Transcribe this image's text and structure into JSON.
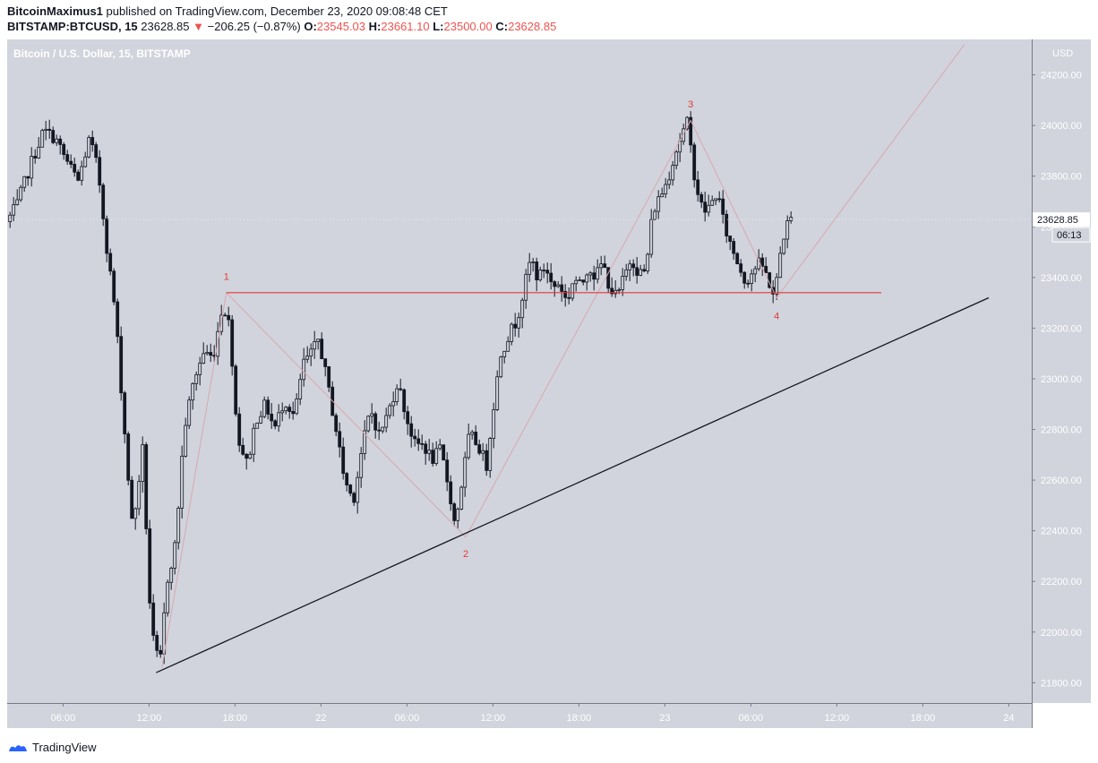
{
  "header": {
    "author": "BitcoinMaximus1",
    "published_text": "published on TradingView.com, December 23, 2020 09:08:48 CET",
    "symbol": "BITSTAMP:BTCUSD, 15",
    "last": "23628.85",
    "change": "−206.25 (−0.87%)",
    "o_label": "O:",
    "o_value": "23545.03",
    "h_label": "H:",
    "h_value": "23661.10",
    "l_label": "L:",
    "l_value": "23500.00",
    "c_label": "C:",
    "c_value": "23628.85"
  },
  "footer": {
    "brand": "TradingView"
  },
  "colors": {
    "background": "#d1d4dc",
    "candle": "#131722",
    "resistance": "#e53935",
    "wave": "#d7a8b2",
    "trend": "#131722",
    "label": "#e53935",
    "price_tag": "#ffffff"
  },
  "chart_data": {
    "type": "candlestick",
    "title": "Bitcoin / U.S. Dollar, 15, BITSTAMP",
    "currency": "USD",
    "ylim": [
      21720,
      24340
    ],
    "y_ticks": [
      21800,
      22000,
      22200,
      22400,
      22600,
      22800,
      23000,
      23200,
      23400,
      23600,
      23800,
      24000,
      24200
    ],
    "x_ticks": [
      {
        "t": 0.5,
        "label": "06:00"
      },
      {
        "t": 6.5,
        "label": "12:00"
      },
      {
        "t": 12.5,
        "label": "18:00"
      },
      {
        "t": 18.5,
        "label": "22"
      },
      {
        "t": 24.5,
        "label": "06:00"
      },
      {
        "t": 30.5,
        "label": "12:00"
      },
      {
        "t": 36.5,
        "label": "18:00"
      },
      {
        "t": 42.5,
        "label": "23"
      },
      {
        "t": 48.5,
        "label": "06:00"
      },
      {
        "t": 54.5,
        "label": "12:00"
      },
      {
        "t": 60.5,
        "label": "18:00"
      },
      {
        "t": 66.5,
        "label": "24"
      }
    ],
    "xlim": [
      -3.4,
      68.1
    ],
    "last_price": {
      "value": 23628.85,
      "label": "23628.85",
      "countdown": "06:13"
    },
    "price_path": [
      [
        -3.2,
        23620
      ],
      [
        -2.5,
        23680
      ],
      [
        -1.5,
        23850
      ],
      [
        -0.6,
        23980
      ],
      [
        0.2,
        23950
      ],
      [
        1.0,
        23860
      ],
      [
        1.8,
        23780
      ],
      [
        2.6,
        23950
      ],
      [
        3.2,
        23820
      ],
      [
        3.8,
        23520
      ],
      [
        4.4,
        23260
      ],
      [
        5.0,
        22820
      ],
      [
        5.6,
        22400
      ],
      [
        6.3,
        22720
      ],
      [
        6.9,
        22000
      ],
      [
        7.5,
        21860
      ],
      [
        8.0,
        22200
      ],
      [
        8.6,
        22350
      ],
      [
        9.2,
        22800
      ],
      [
        9.9,
        23000
      ],
      [
        10.6,
        23110
      ],
      [
        11.2,
        23080
      ],
      [
        11.9,
        23300
      ],
      [
        12.4,
        23200
      ],
      [
        12.9,
        22780
      ],
      [
        13.6,
        22660
      ],
      [
        14.2,
        22840
      ],
      [
        14.9,
        22900
      ],
      [
        15.5,
        22800
      ],
      [
        16.2,
        22920
      ],
      [
        16.9,
        22850
      ],
      [
        17.5,
        23060
      ],
      [
        18.1,
        23100
      ],
      [
        18.6,
        23160
      ],
      [
        19.2,
        22980
      ],
      [
        19.8,
        22800
      ],
      [
        20.4,
        22600
      ],
      [
        21.0,
        22520
      ],
      [
        21.6,
        22720
      ],
      [
        22.2,
        22880
      ],
      [
        22.8,
        22780
      ],
      [
        23.4,
        22860
      ],
      [
        24.1,
        22990
      ],
      [
        24.7,
        22850
      ],
      [
        25.3,
        22740
      ],
      [
        25.9,
        22740
      ],
      [
        26.5,
        22680
      ],
      [
        27.1,
        22720
      ],
      [
        27.7,
        22560
      ],
      [
        28.1,
        22420
      ],
      [
        28.6,
        22600
      ],
      [
        29.1,
        22780
      ],
      [
        29.7,
        22740
      ],
      [
        30.3,
        22660
      ],
      [
        30.8,
        22900
      ],
      [
        31.3,
        23100
      ],
      [
        31.9,
        23180
      ],
      [
        32.4,
        23230
      ],
      [
        32.9,
        23350
      ],
      [
        33.4,
        23480
      ],
      [
        33.9,
        23390
      ],
      [
        34.4,
        23450
      ],
      [
        34.9,
        23360
      ],
      [
        35.4,
        23380
      ],
      [
        35.9,
        23300
      ],
      [
        36.4,
        23400
      ],
      [
        36.9,
        23360
      ],
      [
        37.4,
        23450
      ],
      [
        37.9,
        23400
      ],
      [
        38.4,
        23460
      ],
      [
        38.9,
        23360
      ],
      [
        39.4,
        23320
      ],
      [
        39.9,
        23400
      ],
      [
        40.4,
        23480
      ],
      [
        40.9,
        23420
      ],
      [
        41.4,
        23420
      ],
      [
        41.9,
        23660
      ],
      [
        42.4,
        23720
      ],
      [
        42.9,
        23780
      ],
      [
        43.4,
        23880
      ],
      [
        43.9,
        23960
      ],
      [
        44.3,
        24010
      ],
      [
        44.9,
        23770
      ],
      [
        45.4,
        23660
      ],
      [
        45.9,
        23680
      ],
      [
        46.4,
        23740
      ],
      [
        46.9,
        23600
      ],
      [
        47.4,
        23520
      ],
      [
        47.9,
        23450
      ],
      [
        48.4,
        23380
      ],
      [
        48.9,
        23430
      ],
      [
        49.4,
        23460
      ],
      [
        49.9,
        23400
      ],
      [
        50.4,
        23320
      ],
      [
        50.9,
        23540
      ],
      [
        51.4,
        23628.85
      ]
    ],
    "annotations": {
      "resistance": {
        "t1": 11.9,
        "t2": 57.6,
        "y": 23340
      },
      "trendline": {
        "t1": 7.0,
        "y1": 21840,
        "t2": 65.1,
        "y2": 23320
      },
      "wave_points": [
        {
          "t": 7.4,
          "y": 21860
        },
        {
          "t": 11.9,
          "y": 23340
        },
        {
          "t": 28.6,
          "y": 22375
        },
        {
          "t": 44.3,
          "y": 24020
        },
        {
          "t": 50.3,
          "y": 23320
        },
        {
          "t": 63.4,
          "y": 24320
        }
      ],
      "labels": [
        {
          "text": "1",
          "t": 11.9,
          "y": 23370,
          "pos": "above"
        },
        {
          "text": "2",
          "t": 28.6,
          "y": 22345,
          "pos": "below"
        },
        {
          "text": "3",
          "t": 44.3,
          "y": 24050,
          "pos": "above"
        },
        {
          "text": "4",
          "t": 50.3,
          "y": 23285,
          "pos": "below"
        }
      ]
    }
  }
}
